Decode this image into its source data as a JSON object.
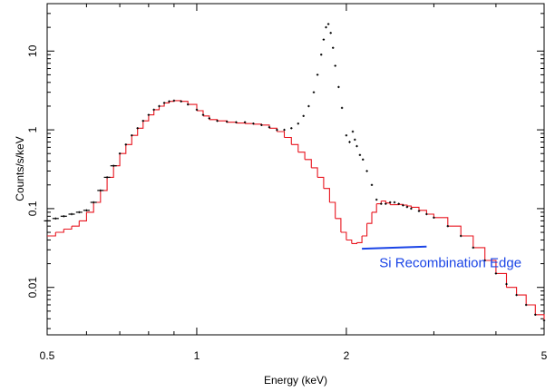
{
  "chart_data": {
    "type": "line",
    "title": "",
    "xlabel": "Energy (keV)",
    "ylabel": "Counts/s/keV",
    "xscale": "log",
    "yscale": "log",
    "xlim": [
      0.5,
      5.0
    ],
    "ylim": [
      0.0025,
      40
    ],
    "x_ticks": [
      0.5,
      1,
      2,
      5
    ],
    "x_tick_labels": [
      "0.5",
      "1",
      "2",
      "5"
    ],
    "y_ticks": [
      0.01,
      0.1,
      1,
      10
    ],
    "y_tick_labels": [
      "0.01",
      "0.1",
      "1",
      "10"
    ],
    "grid": false,
    "legend": "none",
    "colors": {
      "model": "#e8141e",
      "data": "#000000",
      "annotation": "#1a44e6"
    },
    "series": [
      {
        "style": "step",
        "x": [
          0.5,
          0.52,
          0.54,
          0.56,
          0.58,
          0.6,
          0.62,
          0.64,
          0.66,
          0.68,
          0.7,
          0.72,
          0.74,
          0.76,
          0.78,
          0.8,
          0.82,
          0.84,
          0.86,
          0.88,
          0.9,
          0.93,
          0.96,
          1.0,
          1.03,
          1.06,
          1.1,
          1.15,
          1.2,
          1.25,
          1.3,
          1.35,
          1.4,
          1.45,
          1.5,
          1.55,
          1.6,
          1.65,
          1.7,
          1.75,
          1.8,
          1.85,
          1.9,
          1.95,
          2.0,
          2.05,
          2.1,
          2.15,
          2.2,
          2.25,
          2.3,
          2.35,
          2.4,
          2.45,
          2.5,
          2.55,
          2.6,
          2.65,
          2.7,
          2.8,
          2.9,
          3.0,
          3.2,
          3.4,
          3.6,
          3.8,
          4.0,
          4.2,
          4.4,
          4.6,
          4.8,
          5.0
        ],
        "y": [
          0.045,
          0.05,
          0.055,
          0.06,
          0.07,
          0.09,
          0.12,
          0.17,
          0.25,
          0.35,
          0.5,
          0.65,
          0.85,
          1.05,
          1.3,
          1.55,
          1.8,
          2.0,
          2.2,
          2.3,
          2.35,
          2.3,
          2.1,
          1.75,
          1.5,
          1.35,
          1.3,
          1.25,
          1.22,
          1.2,
          1.18,
          1.15,
          1.05,
          0.95,
          0.8,
          0.65,
          0.52,
          0.42,
          0.33,
          0.25,
          0.18,
          0.12,
          0.075,
          0.05,
          0.04,
          0.036,
          0.037,
          0.045,
          0.065,
          0.09,
          0.115,
          0.125,
          0.118,
          0.112,
          0.112,
          0.113,
          0.111,
          0.108,
          0.104,
          0.095,
          0.085,
          0.077,
          0.06,
          0.045,
          0.032,
          0.022,
          0.015,
          0.01,
          0.008,
          0.006,
          0.0045,
          0.0038
        ]
      },
      {
        "style": "points",
        "x": [
          0.5,
          0.52,
          0.54,
          0.56,
          0.58,
          0.6,
          0.62,
          0.64,
          0.66,
          0.68,
          0.7,
          0.72,
          0.74,
          0.76,
          0.78,
          0.8,
          0.82,
          0.84,
          0.86,
          0.88,
          0.9,
          0.93,
          0.96,
          1.0,
          1.03,
          1.06,
          1.1,
          1.15,
          1.2,
          1.25,
          1.3,
          1.35,
          1.4,
          1.45,
          1.5,
          1.55,
          1.6,
          1.64,
          1.68,
          1.72,
          1.75,
          1.78,
          1.8,
          1.82,
          1.84,
          1.86,
          1.88,
          1.9,
          1.93,
          1.96,
          2.0,
          2.03,
          2.06,
          2.08,
          2.1,
          2.13,
          2.16,
          2.2,
          2.25,
          2.3,
          2.35,
          2.4,
          2.45,
          2.5,
          2.55,
          2.6,
          2.65,
          2.7,
          2.8,
          2.9,
          3.0,
          3.2,
          3.4,
          3.6,
          3.8,
          4.0,
          4.2,
          4.4,
          4.6,
          4.8,
          5.0
        ],
        "y": [
          0.07,
          0.075,
          0.08,
          0.085,
          0.09,
          0.095,
          0.12,
          0.17,
          0.25,
          0.35,
          0.5,
          0.65,
          0.85,
          1.05,
          1.3,
          1.55,
          1.8,
          2.0,
          2.2,
          2.3,
          2.35,
          2.3,
          2.1,
          1.8,
          1.55,
          1.4,
          1.3,
          1.27,
          1.25,
          1.25,
          1.2,
          1.15,
          1.08,
          1.0,
          1.0,
          1.05,
          1.2,
          1.5,
          2.0,
          3.0,
          5.0,
          9.0,
          14.0,
          20.0,
          22.0,
          17.0,
          11.0,
          6.5,
          3.5,
          1.9,
          0.85,
          0.7,
          0.95,
          0.75,
          0.62,
          0.48,
          0.42,
          0.3,
          0.2,
          0.13,
          0.115,
          0.115,
          0.12,
          0.12,
          0.115,
          0.11,
          0.105,
          0.1,
          0.093,
          0.085,
          0.077,
          0.06,
          0.045,
          0.032,
          0.022,
          0.015,
          0.011,
          0.008,
          0.006,
          0.0045,
          0.0038
        ]
      }
    ],
    "annotations": [
      {
        "text": "Si Recombination Edge",
        "underline_x": [
          2.15,
          2.9
        ],
        "underline_y": [
          0.031,
          0.033
        ],
        "label_x": 2.33,
        "label_y": 0.018
      }
    ]
  }
}
